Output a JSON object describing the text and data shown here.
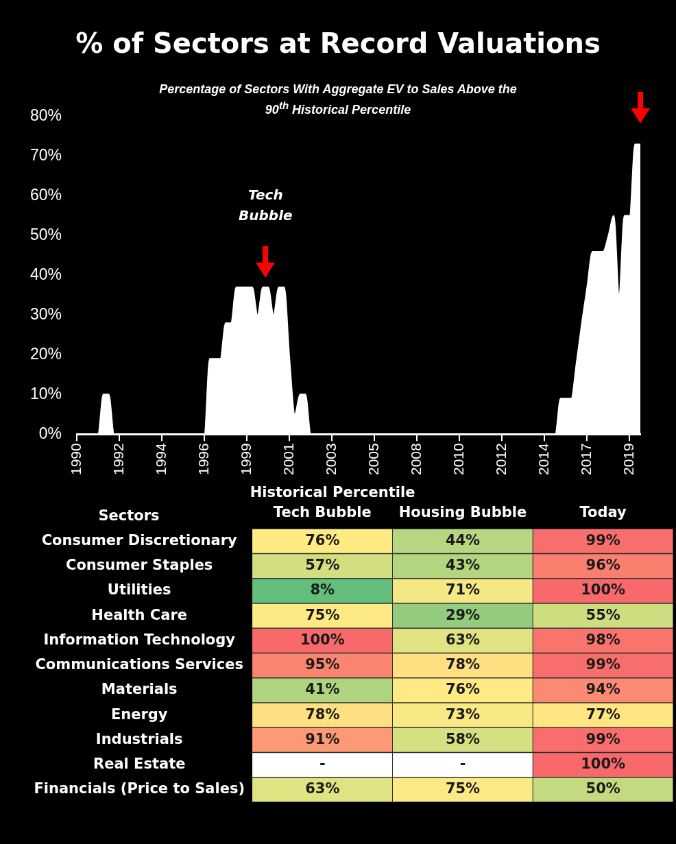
{
  "chart_data": [
    {
      "type": "area",
      "title": "% of Sectors at Record Valuations",
      "subtitle": "Percentage of Sectors With Aggregate EV to Sales Above the 90$^{th}$ Historical Percentile",
      "categories": [
        "1990",
        null,
        null,
        null,
        null,
        null,
        null,
        null,
        "1992",
        null,
        null,
        null,
        null,
        null,
        null,
        null,
        "1994",
        null,
        null,
        null,
        null,
        null,
        null,
        null,
        "1996",
        null,
        null,
        null,
        null,
        null,
        null,
        null,
        "1999",
        null,
        null,
        null,
        null,
        null,
        null,
        null,
        "2001",
        null,
        null,
        null,
        null,
        null,
        null,
        null,
        "2003",
        null,
        null,
        null,
        null,
        null,
        null,
        null,
        "2005",
        null,
        null,
        null,
        null,
        null,
        null,
        null,
        "2008",
        null,
        null,
        null,
        null,
        null,
        null,
        null,
        "2010",
        null,
        null,
        null,
        null,
        null,
        null,
        null,
        "2012",
        null,
        null,
        null,
        null,
        null,
        null,
        null,
        "2014",
        null,
        null,
        null,
        null,
        null,
        null,
        null,
        "2017",
        null,
        null,
        null,
        null,
        null,
        null,
        null,
        "2019",
        null,
        null
      ],
      "values": [
        0,
        0,
        0,
        0,
        0,
        10,
        10,
        0,
        0,
        0,
        0,
        0,
        0,
        0,
        0,
        0,
        0,
        0,
        0,
        0,
        0,
        0,
        0,
        0,
        0,
        19,
        19,
        19,
        28,
        28,
        37,
        37,
        37,
        37,
        30,
        37,
        37,
        30,
        37,
        37,
        19,
        5,
        10,
        10,
        0,
        0,
        0,
        0,
        0,
        0,
        0,
        0,
        0,
        0,
        0,
        0,
        0,
        0,
        0,
        0,
        0,
        0,
        0,
        0,
        0,
        0,
        0,
        0,
        0,
        0,
        0,
        0,
        0,
        0,
        0,
        0,
        0,
        0,
        0,
        0,
        0,
        0,
        0,
        0,
        0,
        0,
        0,
        0,
        0,
        0,
        0,
        9,
        9,
        9,
        18,
        28,
        37,
        46,
        46,
        46,
        50,
        55,
        35,
        55,
        55,
        73,
        73
      ],
      "color": "#ffffff",
      "ylim": [
        0,
        80
      ],
      "yticks": [
        {
          "value": 0,
          "label": "0%"
        },
        {
          "value": 10,
          "label": "10%"
        },
        {
          "value": 20,
          "label": "20%"
        },
        {
          "value": 30,
          "label": "30%"
        },
        {
          "value": 40,
          "label": "40%"
        },
        {
          "value": 50,
          "label": "50%"
        },
        {
          "value": 60,
          "label": "60%"
        },
        {
          "value": 70,
          "label": "70%"
        },
        {
          "value": 80,
          "label": "80%"
        }
      ],
      "annotations": [
        "Tech Bubble"
      ]
    },
    {
      "type": "heatmap",
      "title": "Historical Percentile",
      "ylabel": "Sectors",
      "categories": [
        "Tech Bubble",
        "Housing Bubble",
        "Today"
      ],
      "y_categories": [
        "Consumer Discretionary",
        "Consumer Staples",
        "Utilities",
        "Health Care",
        "Information Technology",
        "Communications Services",
        "Materials",
        "Energy",
        "Industrials",
        "Real Estate",
        "Financials (Price to Sales)"
      ],
      "cells": [
        [
          76,
          44,
          99
        ],
        [
          57,
          43,
          96
        ],
        [
          8,
          71,
          100
        ],
        [
          75,
          29,
          55
        ],
        [
          100,
          63,
          98
        ],
        [
          95,
          78,
          99
        ],
        [
          41,
          76,
          94
        ],
        [
          78,
          73,
          77
        ],
        [
          91,
          58,
          99
        ],
        [
          null,
          null,
          100
        ],
        [
          63,
          75,
          50
        ]
      ],
      "cell_labels": [
        [
          "76%",
          "44%",
          "99%"
        ],
        [
          "57%",
          "43%",
          "96%"
        ],
        [
          "8%",
          "71%",
          "100%"
        ],
        [
          "75%",
          "29%",
          "55%"
        ],
        [
          "100%",
          "63%",
          "98%"
        ],
        [
          "95%",
          "78%",
          "99%"
        ],
        [
          "41%",
          "76%",
          "94%"
        ],
        [
          "78%",
          "73%",
          "77%"
        ],
        [
          "91%",
          "58%",
          "99%"
        ],
        [
          "-",
          "-",
          "100%"
        ],
        [
          "63%",
          "75%",
          "50%"
        ]
      ],
      "colors": [
        "#63be7b",
        "#ffeb84",
        "#f8696b"
      ]
    }
  ]
}
